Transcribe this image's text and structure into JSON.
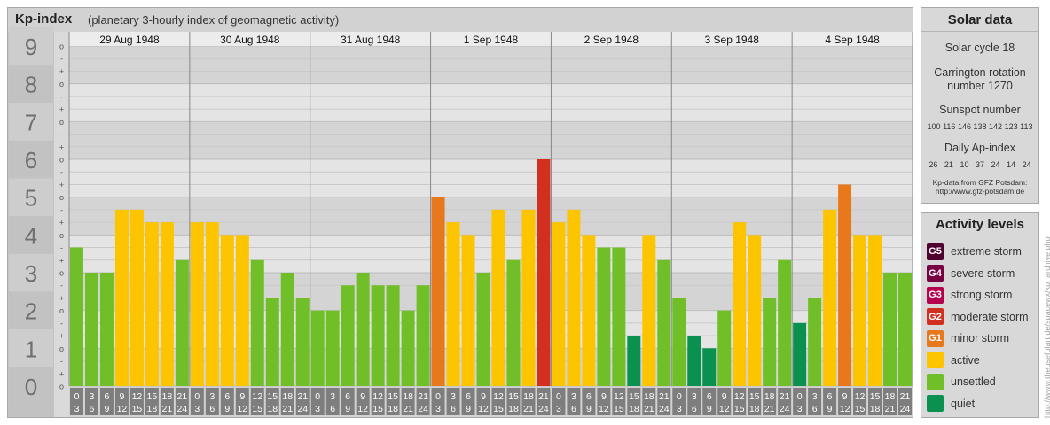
{
  "header": {
    "title": "Kp-index",
    "subtitle": "(planetary 3-hourly index of geomagnetic activity)"
  },
  "chart_data": {
    "type": "bar",
    "title": "Kp-index",
    "subtitle": "(planetary 3-hourly index of geomagnetic activity)",
    "days": [
      "29 Aug 1948",
      "30 Aug 1948",
      "31 Aug 1948",
      "1 Sep 1948",
      "2 Sep 1948",
      "3 Sep 1948",
      "4 Sep 1948"
    ],
    "hour_start": [
      "0",
      "3",
      "6",
      "9",
      "12",
      "15",
      "18",
      "21"
    ],
    "hour_end": [
      "3",
      "6",
      "9",
      "12",
      "15",
      "18",
      "21",
      "24"
    ],
    "values": [
      3.667,
      3.0,
      3.0,
      4.667,
      4.667,
      4.333,
      4.333,
      3.333,
      4.333,
      4.333,
      4.0,
      4.0,
      3.333,
      2.333,
      3.0,
      2.333,
      2.0,
      2.0,
      2.667,
      3.0,
      2.667,
      2.667,
      2.0,
      2.667,
      5.0,
      4.333,
      4.0,
      3.0,
      4.667,
      3.333,
      4.667,
      6.0,
      4.333,
      4.667,
      4.0,
      3.667,
      3.667,
      1.333,
      4.0,
      3.333,
      2.333,
      1.333,
      1.0,
      2.0,
      4.333,
      4.0,
      2.333,
      3.333,
      1.667,
      2.333,
      4.667,
      5.333,
      4.0,
      4.0,
      3.0,
      3.0
    ],
    "y_ticks": [
      "0",
      "1",
      "2",
      "3",
      "4",
      "5",
      "6",
      "7",
      "8",
      "9"
    ],
    "thirds_labels": [
      "o",
      "+",
      "-"
    ],
    "ylim": [
      0,
      9
    ],
    "grid": true,
    "colors": {
      "quiet": "#0a9150",
      "unsettled": "#70bf28",
      "active": "#fdc400",
      "minor_storm": "#e7781c",
      "moderate_storm": "#d22f1e",
      "strong_storm": "#b5004e",
      "severe_storm": "#7a0044",
      "extreme_storm": "#500030"
    }
  },
  "solar": {
    "title": "Solar data",
    "cycle": "Solar cycle 18",
    "carrington_line1": "Carrington rotation",
    "carrington_line2": "number 1270",
    "sunspot_title": "Sunspot number",
    "sunspot_values": [
      "100",
      "116",
      "146",
      "138",
      "142",
      "123",
      "113"
    ],
    "ap_title": "Daily Ap-index",
    "ap_values": [
      "26",
      "21",
      "10",
      "37",
      "24",
      "14",
      "24"
    ],
    "source_line1": "Kp-data from GFZ Potsdam:",
    "source_line2": "http://www.gfz-potsdam.de"
  },
  "activity": {
    "title": "Activity levels",
    "items": [
      {
        "code": "G5",
        "label": "extreme storm",
        "color": "#500030"
      },
      {
        "code": "G4",
        "label": "severe storm",
        "color": "#7a0044"
      },
      {
        "code": "G3",
        "label": "strong storm",
        "color": "#b5004e"
      },
      {
        "code": "G2",
        "label": "moderate storm",
        "color": "#d22f1e"
      },
      {
        "code": "G1",
        "label": "minor storm",
        "color": "#e7781c"
      },
      {
        "code": "",
        "label": "active",
        "color": "#fdc400"
      },
      {
        "code": "",
        "label": "unsettled",
        "color": "#70bf28"
      },
      {
        "code": "",
        "label": "quiet",
        "color": "#0a9150"
      }
    ]
  },
  "credit": "http://www.theusefulart.de/spacewx/kp_archive.php"
}
